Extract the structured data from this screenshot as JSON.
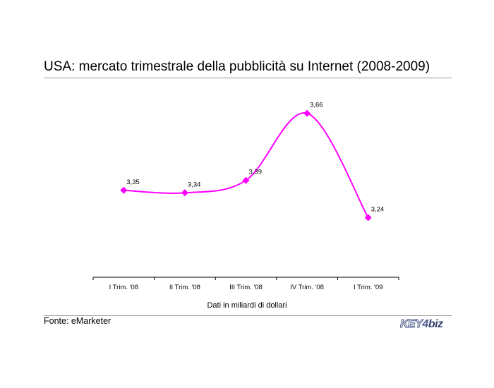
{
  "page": {
    "title": "USA: mercato trimestrale della pubblicità su Internet (2008-2009)",
    "axis_note": "Dati in miliardi di dollari",
    "source": "Fonte: eMarketer",
    "logo": {
      "part1": "KEY",
      "part2": "4",
      "part3": "biz"
    }
  },
  "chart_data": {
    "type": "line",
    "title": "USA: mercato trimestrale della pubblicità su Internet (2008-2009)",
    "xlabel": "Dati in miliardi di dollari",
    "ylabel": "",
    "categories": [
      "I Trim. '08",
      "II Trim. '08",
      "III Trim. '08",
      "IV Trim. '08",
      "I Trim. '09"
    ],
    "series": [
      {
        "values": [
          3.35,
          3.34,
          3.39,
          3.66,
          3.24
        ],
        "labels": [
          "3,35",
          "3,34",
          "3,39",
          "3,66",
          "3,24"
        ]
      }
    ],
    "color": "#ff00ff",
    "ylim": [
      3.0,
      3.73
    ],
    "grid": false,
    "legend": "none"
  }
}
